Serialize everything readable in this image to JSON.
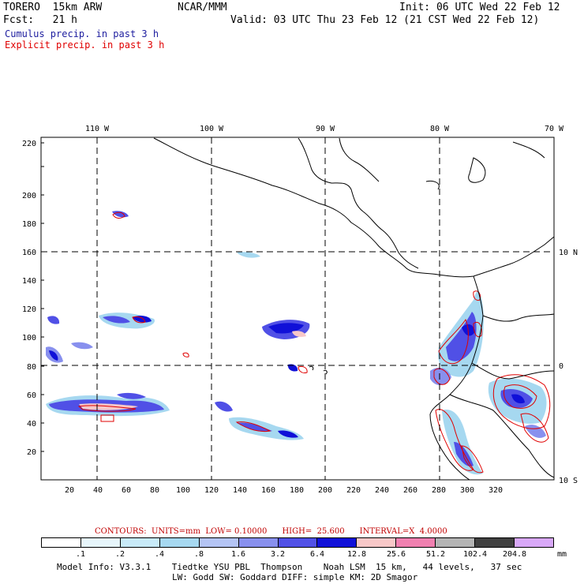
{
  "header": {
    "model": "TORERO  15km ARW",
    "center": "NCAR/MMM",
    "init": "Init: 06 UTC Wed 22 Feb 12",
    "fcst": "Fcst:   21 h",
    "valid": "Valid: 03 UTC Thu 23 Feb 12 (21 CST Wed 22 Feb 12)",
    "cumulus": "Cumulus precip. in past 3 h",
    "explicit": "Explicit precip. in past 3 h"
  },
  "colors": {
    "cumulus_title": "#2020a0",
    "explicit_title": "#e00000",
    "contour": "#e00000",
    "scale": [
      "#ffffff",
      "#e6f5fb",
      "#c8eaf8",
      "#a6d8f0",
      "#b4c4f4",
      "#8890ee",
      "#5050e6",
      "#1010d8",
      "#f8c8c8",
      "#f080b0",
      "#b4b4b4",
      "#404040",
      "#d8a8f8"
    ]
  },
  "map": {
    "lon_labels": [
      "110 W",
      "100 W",
      "90 W",
      "80 W",
      "70 W"
    ],
    "lat_labels": [
      "10 N",
      "0",
      "10 S"
    ],
    "y_ticks": [
      "20",
      "40",
      "60",
      "80",
      "100",
      "120",
      "140",
      "160",
      "180",
      "200",
      "220"
    ],
    "x_ticks": [
      "20",
      "40",
      "60",
      "80",
      "100",
      "120",
      "140",
      "160",
      "180",
      "200",
      "220",
      "240",
      "260",
      "280",
      "300",
      "320"
    ]
  },
  "contours": {
    "text": "CONTOURS:  UNITS=mm  LOW= 0.10000      HIGH=  25.600      INTERVAL=X  4.0000"
  },
  "legend": {
    "labels": [
      ".1",
      ".2",
      ".4",
      ".8",
      "1.6",
      "3.2",
      "6.4",
      "12.8",
      "25.6",
      "51.2",
      "102.4",
      "204.8"
    ],
    "unit": "mm"
  },
  "footer": {
    "line1": "Model Info: V3.3.1    Tiedtke YSU PBL  Thompson    Noah LSM  15 km,   44 levels,   37 sec",
    "line2": "LW: Godd SW: Goddard DIFF: simple KM: 2D Smagor"
  }
}
